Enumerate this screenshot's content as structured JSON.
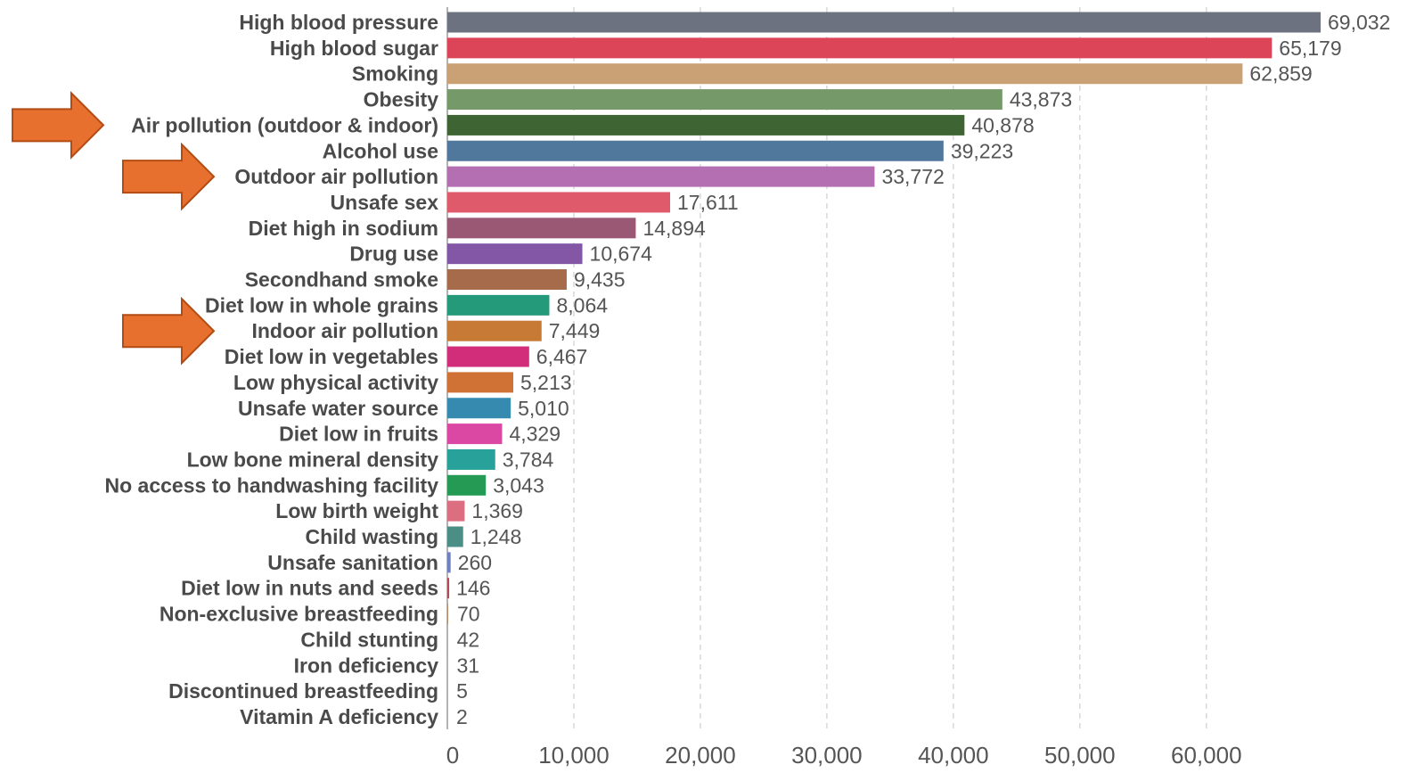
{
  "chart_data": {
    "type": "bar",
    "orientation": "horizontal",
    "title": "",
    "xlabel": "",
    "ylabel": "",
    "xlim": [
      0,
      69032
    ],
    "x_ticks": [
      0,
      10000,
      20000,
      30000,
      40000,
      50000,
      60000
    ],
    "x_tick_labels": [
      "0",
      "10,000",
      "20,000",
      "30,000",
      "40,000",
      "50,000",
      "60,000"
    ],
    "grid": "vertical dashed",
    "legend": "none",
    "categories": [
      "High blood pressure",
      "High blood sugar",
      "Smoking",
      "Obesity",
      "Air pollution (outdoor & indoor)",
      "Alcohol use",
      "Outdoor air pollution",
      "Unsafe sex",
      "Diet high in sodium",
      "Drug use",
      "Secondhand smoke",
      "Diet low in whole grains",
      "Indoor air pollution",
      "Diet low in vegetables",
      "Low physical activity",
      "Unsafe water source",
      "Diet low in fruits",
      "Low bone mineral density",
      "No access to handwashing facility",
      "Low birth weight",
      "Child wasting",
      "Unsafe sanitation",
      "Diet low in nuts and seeds",
      "Non-exclusive breastfeeding",
      "Child stunting",
      "Iron deficiency",
      "Discontinued breastfeeding",
      "Vitamin A deficiency"
    ],
    "values": [
      69032,
      65179,
      62859,
      43873,
      40878,
      39223,
      33772,
      17611,
      14894,
      10674,
      9435,
      8064,
      7449,
      6467,
      5213,
      5010,
      4329,
      3784,
      3043,
      1369,
      1248,
      260,
      146,
      70,
      42,
      31,
      5,
      2
    ],
    "value_labels": [
      "69,032",
      "65,179",
      "62,859",
      "43,873",
      "40,878",
      "39,223",
      "33,772",
      "17,611",
      "14,894",
      "10,674",
      "9,435",
      "8,064",
      "7,449",
      "6,467",
      "5,213",
      "5,010",
      "4,329",
      "3,784",
      "3,043",
      "1,369",
      "1,248",
      "260",
      "146",
      "70",
      "42",
      "31",
      "5",
      "2"
    ],
    "colors": [
      "#6d7281",
      "#dc4458",
      "#c9a174",
      "#76996a",
      "#3e6433",
      "#50789c",
      "#b46fb3",
      "#df5a6a",
      "#9a5874",
      "#8457a6",
      "#a56b4a",
      "#259a7a",
      "#c67a35",
      "#d22d7a",
      "#d07135",
      "#378aaf",
      "#da48a3",
      "#27a19a",
      "#259a55",
      "#db6e80",
      "#4b8e86",
      "#6f80c2",
      "#b44a55",
      "#b09070",
      "#a0a0a0",
      "#a0a0a0",
      "#a0a0a0",
      "#a0a0a0"
    ],
    "highlighted": [
      "Air pollution (outdoor & indoor)",
      "Outdoor air pollution",
      "Indoor air pollution"
    ],
    "highlight_color": "#e8702f",
    "highlight_marker": "arrow-right-icon"
  }
}
